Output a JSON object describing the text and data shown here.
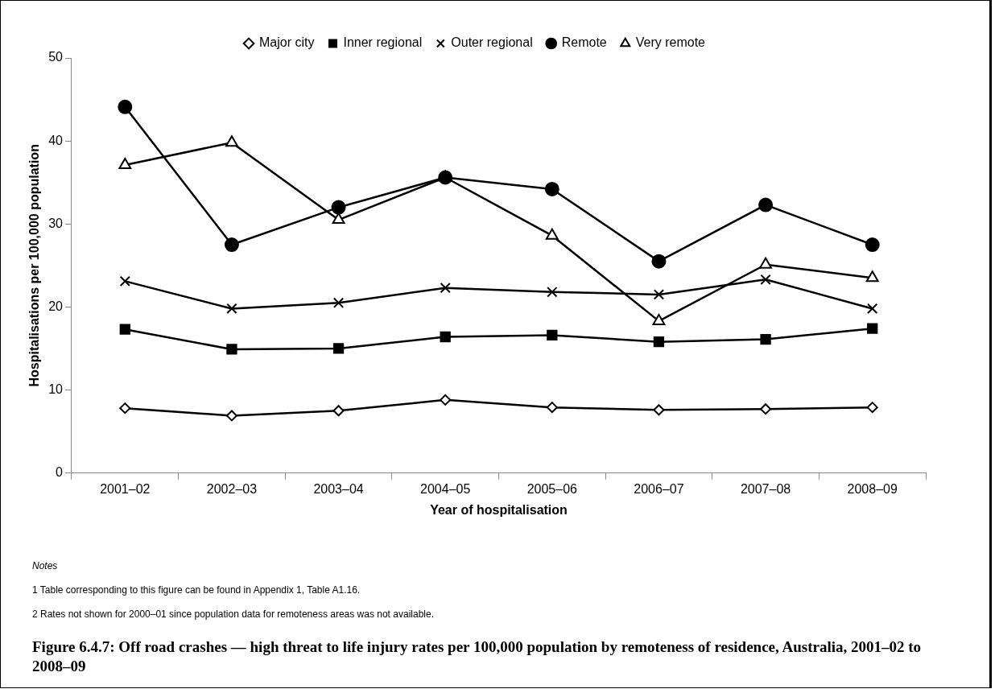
{
  "chart_data": {
    "type": "line",
    "title": "Figure 6.4.7: Off road crashes — high threat to life injury rates per 100,000 population by remoteness of residence, Australia, 2001–02 to 2008–09",
    "xlabel": "Year of hospitalisation",
    "ylabel": "Hospitalisations per 100,000 population",
    "categories": [
      "2001–02",
      "2002–03",
      "2003–04",
      "2004–05",
      "2005–06",
      "2006–07",
      "2007–08",
      "2008–09"
    ],
    "series": [
      {
        "name": "Major city",
        "color": "#000000",
        "marker": "diamond",
        "values": [
          7.8,
          6.9,
          7.5,
          8.8,
          7.9,
          7.6,
          7.7,
          7.9
        ]
      },
      {
        "name": "Inner regional",
        "color": "#000000",
        "marker": "square",
        "values": [
          17.3,
          14.9,
          15.0,
          16.4,
          16.6,
          15.8,
          16.1,
          17.4
        ]
      },
      {
        "name": "Outer regional",
        "color": "#000000",
        "marker": "cross",
        "values": [
          23.1,
          19.8,
          20.5,
          22.3,
          21.8,
          21.5,
          23.3,
          19.8
        ]
      },
      {
        "name": "Remote",
        "color": "#000000",
        "marker": "circle",
        "values": [
          44.1,
          27.5,
          32.0,
          35.6,
          34.2,
          25.5,
          32.3,
          27.5
        ]
      },
      {
        "name": "Very remote",
        "color": "#000000",
        "marker": "triangle",
        "values": [
          37.1,
          39.8,
          30.5,
          35.6,
          28.6,
          18.3,
          25.1,
          23.5
        ]
      }
    ],
    "ylim": [
      0,
      50
    ],
    "yticks": [
      0,
      10,
      20,
      30,
      40,
      50
    ],
    "grid": false,
    "legend": "top",
    "line_style": "solid",
    "annotations": [
      "Notes",
      "1 Table corresponding to this figure can be found in Appendix 1, Table A1.16.",
      "2 Rates not shown for 2000–01 since population data for remoteness areas was not available."
    ]
  }
}
